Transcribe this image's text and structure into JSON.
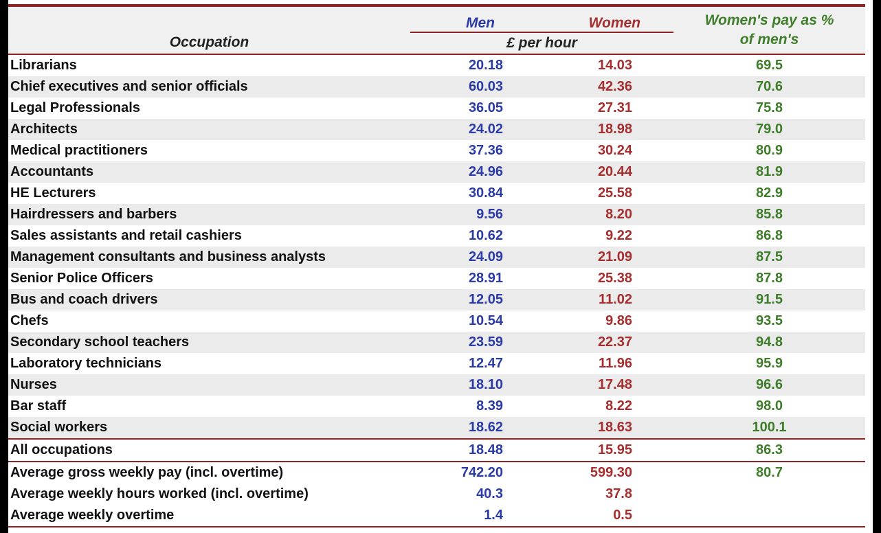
{
  "header": {
    "occupation": "Occupation",
    "men": "Men",
    "women": "Women",
    "unit": "£ per hour",
    "pct_line1": "Women's pay as %",
    "pct_line2": "of men's"
  },
  "colors": {
    "men": "#2b3ba5",
    "women": "#a52e2e",
    "pct": "#3e7d29",
    "rule": "#8a2525"
  },
  "rows": [
    {
      "occupation": "Librarians",
      "men": "20.18",
      "women": "14.03",
      "pct": "69.5"
    },
    {
      "occupation": "Chief executives and senior officials",
      "men": "60.03",
      "women": "42.36",
      "pct": "70.6"
    },
    {
      "occupation": "Legal Professionals",
      "men": "36.05",
      "women": "27.31",
      "pct": "75.8"
    },
    {
      "occupation": "Architects",
      "men": "24.02",
      "women": "18.98",
      "pct": "79.0"
    },
    {
      "occupation": "Medical practitioners",
      "men": "37.36",
      "women": "30.24",
      "pct": "80.9"
    },
    {
      "occupation": "Accountants",
      "men": "24.96",
      "women": "20.44",
      "pct": "81.9"
    },
    {
      "occupation": "HE Lecturers",
      "men": "30.84",
      "women": "25.58",
      "pct": "82.9"
    },
    {
      "occupation": "Hairdressers and barbers",
      "men": "9.56",
      "women": "8.20",
      "pct": "85.8"
    },
    {
      "occupation": "Sales assistants and retail cashiers",
      "men": "10.62",
      "women": "9.22",
      "pct": "86.8"
    },
    {
      "occupation": "Management consultants and business analysts",
      "men": "24.09",
      "women": "21.09",
      "pct": "87.5"
    },
    {
      "occupation": "Senior Police Officers",
      "men": "28.91",
      "women": "25.38",
      "pct": "87.8"
    },
    {
      "occupation": "Bus and coach drivers",
      "men": "12.05",
      "women": "11.02",
      "pct": "91.5"
    },
    {
      "occupation": "Chefs",
      "men": "10.54",
      "women": "9.86",
      "pct": "93.5"
    },
    {
      "occupation": "Secondary school teachers",
      "men": "23.59",
      "women": "22.37",
      "pct": "94.8"
    },
    {
      "occupation": "Laboratory technicians",
      "men": "12.47",
      "women": "11.96",
      "pct": "95.9"
    },
    {
      "occupation": "Nurses",
      "men": "18.10",
      "women": "17.48",
      "pct": "96.6"
    },
    {
      "occupation": "Bar staff",
      "men": "8.39",
      "women": "8.22",
      "pct": "98.0"
    },
    {
      "occupation": "Social workers",
      "men": "18.62",
      "women": "18.63",
      "pct": "100.1"
    }
  ],
  "all_occupations": {
    "occupation": "All occupations",
    "men": "18.48",
    "women": "15.95",
    "pct": "86.3"
  },
  "footer_rows": [
    {
      "occupation": "Average gross weekly pay (incl. overtime)",
      "men": "742.20",
      "women": "599.30",
      "pct": "80.7"
    },
    {
      "occupation": "Average weekly hours worked (incl. overtime)",
      "men": "40.3",
      "women": "37.8",
      "pct": ""
    },
    {
      "occupation": "Average weekly overtime",
      "men": "1.4",
      "women": "0.5",
      "pct": ""
    }
  ]
}
